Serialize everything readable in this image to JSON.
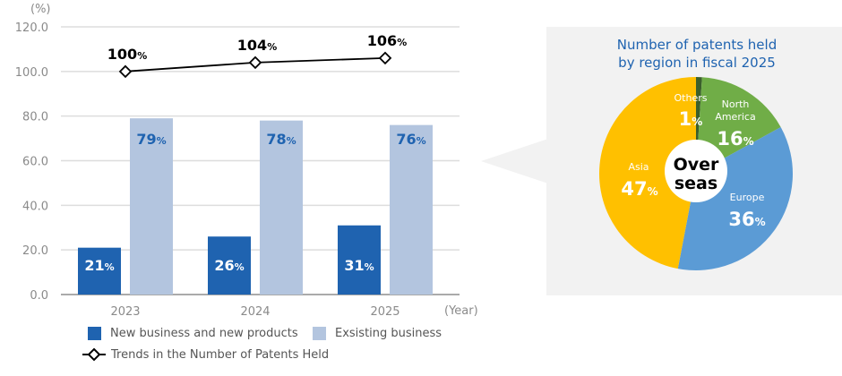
{
  "chart_data": [
    {
      "type": "bar",
      "yunit": "(%)",
      "xunit": "(Year)",
      "categories": [
        "2023",
        "2024",
        "2025"
      ],
      "ylim": [
        0,
        120
      ],
      "yticks": [
        "0.0",
        "20.0",
        "40.0",
        "60.0",
        "80.0",
        "100.0",
        "120.0"
      ],
      "grid": true,
      "legend_position": "bottom",
      "series": [
        {
          "name": "New business and new products",
          "type": "bar",
          "color": "#1f63b0",
          "values": [
            21,
            26,
            31
          ],
          "labels": [
            "21",
            "26",
            "31"
          ]
        },
        {
          "name": "Exsisting business",
          "type": "bar",
          "color": "#b3c5df",
          "values": [
            79,
            78,
            76
          ],
          "labels": [
            "79",
            "78",
            "76"
          ]
        },
        {
          "name": "Trends in the Number of Patents Held",
          "type": "line",
          "marker": "diamond",
          "color": "#000000",
          "values": [
            100,
            104,
            106
          ],
          "labels": [
            "100",
            "104",
            "106"
          ]
        }
      ],
      "percent_sign": "%"
    },
    {
      "type": "pie",
      "title_line1": "Number of patents held",
      "title_line2": "by region in fiscal 2025",
      "center_label_line1": "Over",
      "center_label_line2": "seas",
      "slices": [
        {
          "label": "Others",
          "value": 1,
          "color": "#3b5f2c"
        },
        {
          "label_line1": "North",
          "label_line2": "America",
          "value": 16,
          "color": "#70ad47"
        },
        {
          "label": "Europe",
          "value": 36,
          "color": "#5b9bd5"
        },
        {
          "label": "Asia",
          "value": 47,
          "color": "#ffc000"
        }
      ],
      "panel_color": "#f2f2f2",
      "title_color": "#1f63b0"
    }
  ]
}
